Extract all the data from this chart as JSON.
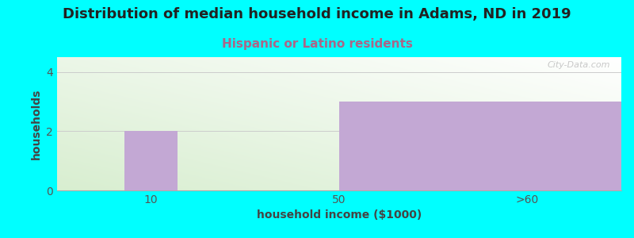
{
  "title": "Distribution of median household income in Adams, ND in 2019",
  "subtitle": "Hispanic or Latino residents",
  "title_color": "#222222",
  "subtitle_color": "#AA6688",
  "xlabel": "household income ($1000)",
  "ylabel": "households",
  "background_color": "#00FFFF",
  "plot_bg_color_top_right": "#FFFFFF",
  "plot_bg_color_bottom_left": "#D8EED0",
  "bar_color": "#C3A8D4",
  "categories": [
    "10",
    "50",
    ">60"
  ],
  "ylim": [
    0,
    4.5
  ],
  "yticks": [
    0,
    2,
    4
  ],
  "watermark": "City-Data.com",
  "title_fontsize": 13,
  "subtitle_fontsize": 11,
  "label_fontsize": 10,
  "tick_fontsize": 10
}
